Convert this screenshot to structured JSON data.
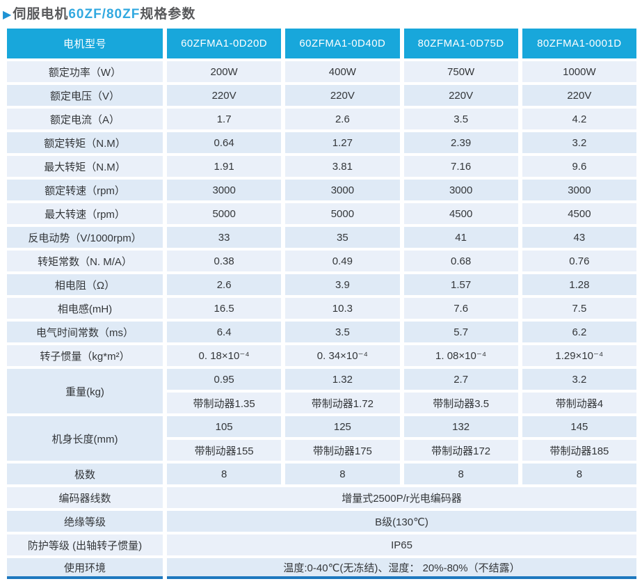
{
  "title": {
    "arrow": "▶",
    "prefix": "伺服电机",
    "highlight": "60ZF/80ZF",
    "suffix": "规格参数"
  },
  "colors": {
    "header_bg": "#18a7db",
    "row_light": "#eaf0f9",
    "row_blue": "#dfeaf6",
    "bottom_line": "#1e78bf",
    "title_gray": "#58595b",
    "title_cyan": "#32a9e0"
  },
  "table": {
    "header": [
      "电机型号",
      "60ZFMA1-0D20D",
      "60ZFMA1-0D40D",
      "80ZFMA1-0D75D",
      "80ZFMA1-0001D"
    ],
    "spec_rows": [
      {
        "label": "额定功率（W）",
        "values": [
          "200W",
          "400W",
          "750W",
          "1000W"
        ]
      },
      {
        "label": "额定电压（V）",
        "values": [
          "220V",
          "220V",
          "220V",
          "220V"
        ]
      },
      {
        "label": "额定电流（A）",
        "values": [
          "1.7",
          "2.6",
          "3.5",
          "4.2"
        ]
      },
      {
        "label": "额定转矩（N.M）",
        "values": [
          "0.64",
          "1.27",
          "2.39",
          "3.2"
        ]
      },
      {
        "label": "最大转矩（N.M）",
        "values": [
          "1.91",
          "3.81",
          "7.16",
          "9.6"
        ]
      },
      {
        "label": "额定转速（rpm）",
        "values": [
          "3000",
          "3000",
          "3000",
          "3000"
        ]
      },
      {
        "label": "最大转速（rpm）",
        "values": [
          "5000",
          "5000",
          "4500",
          "4500"
        ]
      },
      {
        "label": "反电动势（V/1000rpm）",
        "values": [
          "33",
          "35",
          "41",
          "43"
        ]
      },
      {
        "label": "转矩常数（N. M/A）",
        "values": [
          "0.38",
          "0.49",
          "0.68",
          "0.76"
        ]
      },
      {
        "label": "相电阻（Ω）",
        "values": [
          "2.6",
          "3.9",
          "1.57",
          "1.28"
        ]
      },
      {
        "label": "相电感(mH)",
        "values": [
          "16.5",
          "10.3",
          "7.6",
          "7.5"
        ]
      },
      {
        "label": "电气时间常数（ms）",
        "values": [
          "6.4",
          "3.5",
          "5.7",
          "6.2"
        ]
      },
      {
        "label": "转子惯量（kg*m²）",
        "values": [
          "0. 18×10⁻⁴",
          "0. 34×10⁻⁴",
          "1. 08×10⁻⁴",
          "1.29×10⁻⁴"
        ]
      }
    ],
    "group_rows": [
      {
        "label": "重量(kg)",
        "sub_rows": [
          [
            "0.95",
            "1.32",
            "2.7",
            "3.2"
          ],
          [
            "带制动器1.35",
            "带制动器1.72",
            "带制动器3.5",
            "带制动器4"
          ]
        ]
      },
      {
        "label": "机身长度(mm)",
        "sub_rows": [
          [
            "105",
            "125",
            "132",
            "145"
          ],
          [
            "带制动器155",
            "带制动器175",
            "带制动器172",
            "带制动器185"
          ]
        ]
      }
    ],
    "after_rows": [
      {
        "label": "极数",
        "values": [
          "8",
          "8",
          "8",
          "8"
        ]
      }
    ],
    "span_rows": [
      {
        "label": "编码器线数",
        "value": "增量式2500P/r光电编码器"
      },
      {
        "label": "绝缘等级",
        "value": "B级(130℃)"
      },
      {
        "label": "防护等级 (出轴转子惯量)",
        "value": "IP65"
      },
      {
        "label": "使用环境",
        "value": "温度:0-40℃(无冻结)、湿度： 20%-80%（不结露）"
      }
    ]
  }
}
